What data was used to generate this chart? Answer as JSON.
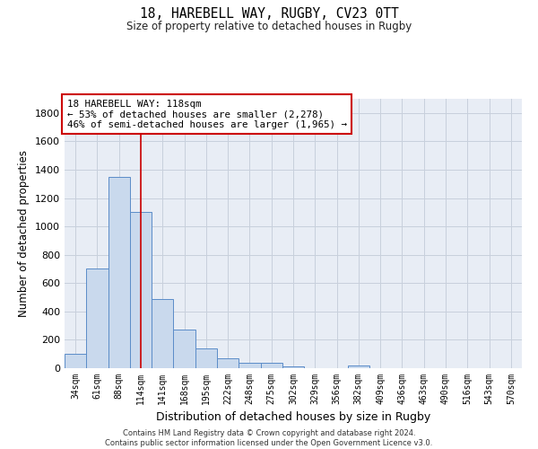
{
  "title1": "18, HAREBELL WAY, RUGBY, CV23 0TT",
  "title2": "Size of property relative to detached houses in Rugby",
  "xlabel": "Distribution of detached houses by size in Rugby",
  "ylabel": "Number of detached properties",
  "bar_labels": [
    "34sqm",
    "61sqm",
    "88sqm",
    "114sqm",
    "141sqm",
    "168sqm",
    "195sqm",
    "222sqm",
    "248sqm",
    "275sqm",
    "302sqm",
    "329sqm",
    "356sqm",
    "382sqm",
    "409sqm",
    "436sqm",
    "463sqm",
    "490sqm",
    "516sqm",
    "543sqm",
    "570sqm"
  ],
  "bar_values": [
    100,
    700,
    1350,
    1100,
    490,
    270,
    140,
    70,
    35,
    35,
    15,
    0,
    0,
    20,
    0,
    0,
    0,
    0,
    0,
    0,
    0
  ],
  "bar_color": "#c9d9ed",
  "bar_edgecolor": "#5b8cc8",
  "ylim": [
    0,
    1900
  ],
  "yticks": [
    0,
    200,
    400,
    600,
    800,
    1000,
    1200,
    1400,
    1600,
    1800
  ],
  "property_line_x": 3.0,
  "annotation_line": "18 HAREBELL WAY: 118sqm",
  "annotation_pct1": "← 53% of detached houses are smaller (2,278)",
  "annotation_pct2": "46% of semi-detached houses are larger (1,965) →",
  "annotation_box_color": "#cc0000",
  "grid_color": "#c8d0dc",
  "bg_color": "#e8edf5",
  "footer1": "Contains HM Land Registry data © Crown copyright and database right 2024.",
  "footer2": "Contains public sector information licensed under the Open Government Licence v3.0."
}
